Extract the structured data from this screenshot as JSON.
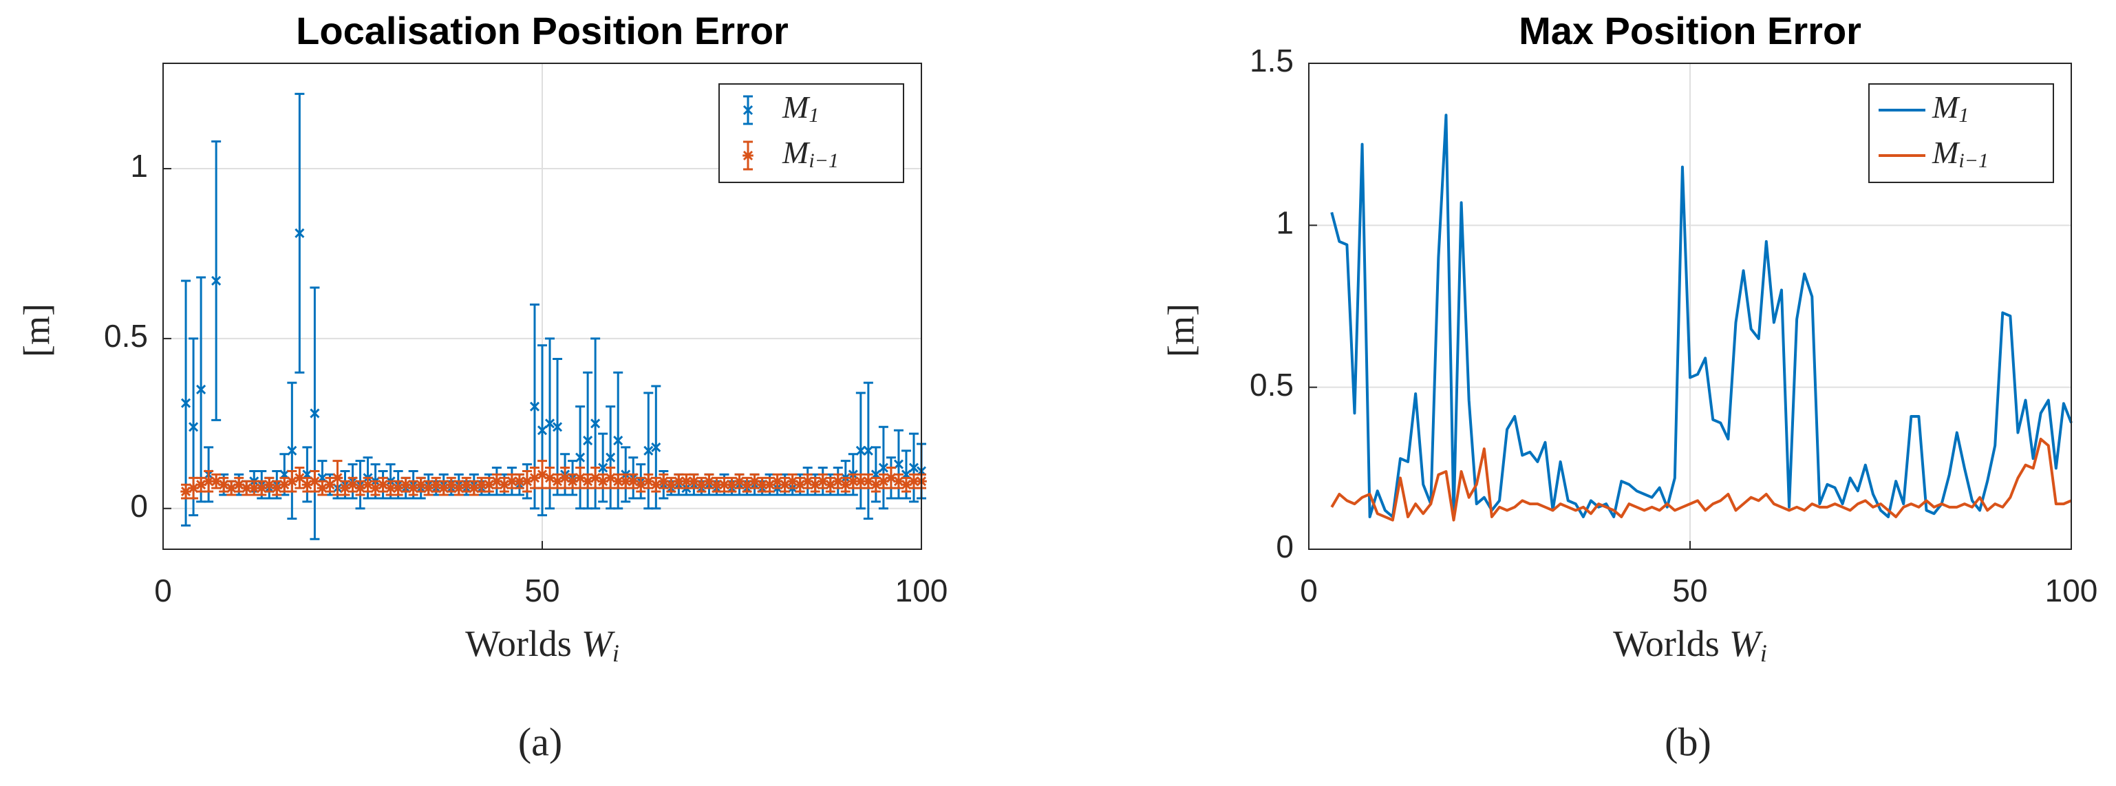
{
  "chart_data": [
    {
      "type": "errorbar",
      "title": "Localisation Position Error",
      "caption": "(a)",
      "xlabel": {
        "text": "Worlds",
        "var": "W",
        "sub": "i"
      },
      "ylabel": "[m]",
      "xlim": [
        0,
        100
      ],
      "xticks": [
        0,
        50,
        100
      ],
      "ylim": [
        -0.12,
        1.31
      ],
      "yticks": [
        0,
        0.5,
        1
      ],
      "grid": true,
      "legend": "northeast",
      "x": [
        3,
        4,
        5,
        6,
        7,
        8,
        9,
        10,
        11,
        12,
        13,
        14,
        15,
        16,
        17,
        18,
        19,
        20,
        21,
        22,
        23,
        24,
        25,
        26,
        27,
        28,
        29,
        30,
        31,
        32,
        33,
        34,
        35,
        36,
        37,
        38,
        39,
        40,
        41,
        42,
        43,
        44,
        45,
        46,
        47,
        48,
        49,
        50,
        51,
        52,
        53,
        54,
        55,
        56,
        57,
        58,
        59,
        60,
        61,
        62,
        63,
        64,
        65,
        66,
        67,
        68,
        69,
        70,
        71,
        72,
        73,
        74,
        75,
        76,
        77,
        78,
        79,
        80,
        81,
        82,
        83,
        84,
        85,
        86,
        87,
        88,
        89,
        90,
        91,
        92,
        93,
        94,
        95,
        96,
        97,
        98,
        99,
        100
      ],
      "series": [
        {
          "name": "M",
          "name_sub": "1",
          "color": "#0072bd",
          "marker": "x",
          "values": [
            0.31,
            0.24,
            0.35,
            0.1,
            0.67,
            0.07,
            0.06,
            0.07,
            0.06,
            0.08,
            0.07,
            0.06,
            0.07,
            0.1,
            0.17,
            0.81,
            0.1,
            0.28,
            0.09,
            0.07,
            0.06,
            0.07,
            0.08,
            0.07,
            0.09,
            0.08,
            0.07,
            0.08,
            0.07,
            0.06,
            0.07,
            0.06,
            0.07,
            0.06,
            0.07,
            0.06,
            0.07,
            0.06,
            0.07,
            0.06,
            0.07,
            0.08,
            0.07,
            0.08,
            0.07,
            0.08,
            0.3,
            0.23,
            0.25,
            0.24,
            0.1,
            0.09,
            0.15,
            0.2,
            0.25,
            0.12,
            0.15,
            0.2,
            0.1,
            0.09,
            0.08,
            0.17,
            0.18,
            0.07,
            0.06,
            0.07,
            0.06,
            0.07,
            0.06,
            0.07,
            0.06,
            0.07,
            0.06,
            0.07,
            0.06,
            0.07,
            0.06,
            0.07,
            0.06,
            0.07,
            0.06,
            0.07,
            0.08,
            0.07,
            0.08,
            0.07,
            0.08,
            0.09,
            0.1,
            0.17,
            0.17,
            0.1,
            0.12,
            0.09,
            0.13,
            0.1,
            0.12,
            0.11
          ],
          "errors": [
            0.36,
            0.26,
            0.33,
            0.08,
            0.41,
            0.03,
            0.02,
            0.03,
            0.02,
            0.03,
            0.04,
            0.03,
            0.04,
            0.06,
            0.2,
            0.41,
            0.08,
            0.37,
            0.05,
            0.03,
            0.03,
            0.04,
            0.05,
            0.07,
            0.06,
            0.05,
            0.04,
            0.05,
            0.04,
            0.03,
            0.04,
            0.03,
            0.03,
            0.02,
            0.03,
            0.02,
            0.03,
            0.02,
            0.03,
            0.02,
            0.03,
            0.04,
            0.03,
            0.04,
            0.03,
            0.05,
            0.3,
            0.25,
            0.25,
            0.2,
            0.06,
            0.05,
            0.15,
            0.2,
            0.25,
            0.1,
            0.15,
            0.2,
            0.08,
            0.06,
            0.05,
            0.17,
            0.18,
            0.04,
            0.02,
            0.03,
            0.02,
            0.03,
            0.02,
            0.03,
            0.02,
            0.03,
            0.02,
            0.03,
            0.02,
            0.03,
            0.02,
            0.03,
            0.02,
            0.03,
            0.02,
            0.03,
            0.04,
            0.03,
            0.04,
            0.03,
            0.04,
            0.05,
            0.06,
            0.17,
            0.2,
            0.08,
            0.12,
            0.06,
            0.1,
            0.07,
            0.1,
            0.08
          ]
        },
        {
          "name": "M",
          "name_sub": "i−1",
          "color": "#d95319",
          "marker": "*",
          "values": [
            0.05,
            0.06,
            0.07,
            0.08,
            0.08,
            0.07,
            0.06,
            0.07,
            0.06,
            0.06,
            0.06,
            0.07,
            0.06,
            0.07,
            0.08,
            0.09,
            0.07,
            0.08,
            0.06,
            0.07,
            0.09,
            0.06,
            0.07,
            0.06,
            0.07,
            0.06,
            0.07,
            0.06,
            0.06,
            0.07,
            0.06,
            0.07,
            0.06,
            0.07,
            0.06,
            0.07,
            0.06,
            0.07,
            0.06,
            0.07,
            0.07,
            0.08,
            0.07,
            0.08,
            0.08,
            0.08,
            0.09,
            0.1,
            0.09,
            0.08,
            0.09,
            0.08,
            0.09,
            0.08,
            0.09,
            0.08,
            0.09,
            0.08,
            0.08,
            0.08,
            0.07,
            0.08,
            0.07,
            0.08,
            0.07,
            0.08,
            0.08,
            0.08,
            0.07,
            0.08,
            0.07,
            0.07,
            0.07,
            0.08,
            0.07,
            0.08,
            0.07,
            0.07,
            0.08,
            0.07,
            0.08,
            0.07,
            0.08,
            0.07,
            0.08,
            0.07,
            0.08,
            0.07,
            0.08,
            0.08,
            0.08,
            0.07,
            0.08,
            0.09,
            0.08,
            0.07,
            0.08,
            0.08
          ],
          "errors": [
            0.02,
            0.03,
            0.02,
            0.03,
            0.02,
            0.02,
            0.02,
            0.02,
            0.02,
            0.02,
            0.02,
            0.02,
            0.02,
            0.02,
            0.03,
            0.03,
            0.02,
            0.03,
            0.02,
            0.02,
            0.05,
            0.02,
            0.02,
            0.02,
            0.02,
            0.02,
            0.02,
            0.02,
            0.02,
            0.02,
            0.02,
            0.02,
            0.02,
            0.02,
            0.02,
            0.02,
            0.02,
            0.02,
            0.02,
            0.02,
            0.02,
            0.02,
            0.02,
            0.02,
            0.02,
            0.03,
            0.03,
            0.04,
            0.03,
            0.02,
            0.03,
            0.02,
            0.03,
            0.02,
            0.03,
            0.02,
            0.03,
            0.02,
            0.02,
            0.02,
            0.02,
            0.02,
            0.02,
            0.02,
            0.02,
            0.02,
            0.02,
            0.02,
            0.02,
            0.02,
            0.02,
            0.02,
            0.02,
            0.02,
            0.02,
            0.02,
            0.02,
            0.02,
            0.02,
            0.02,
            0.02,
            0.02,
            0.02,
            0.02,
            0.02,
            0.02,
            0.02,
            0.02,
            0.02,
            0.02,
            0.02,
            0.02,
            0.02,
            0.03,
            0.02,
            0.02,
            0.02,
            0.02
          ]
        }
      ]
    },
    {
      "type": "line",
      "title": "Max Position Error",
      "caption": "(b)",
      "xlabel": {
        "text": "Worlds",
        "var": "W",
        "sub": "i"
      },
      "ylabel": "[m]",
      "xlim": [
        0,
        100
      ],
      "xticks": [
        0,
        50,
        100
      ],
      "ylim": [
        0,
        1.5
      ],
      "yticks": [
        0,
        0.5,
        1,
        1.5
      ],
      "grid": true,
      "legend": "northeast",
      "x": [
        3,
        4,
        5,
        6,
        7,
        8,
        9,
        10,
        11,
        12,
        13,
        14,
        15,
        16,
        17,
        18,
        19,
        20,
        21,
        22,
        23,
        24,
        25,
        26,
        27,
        28,
        29,
        30,
        31,
        32,
        33,
        34,
        35,
        36,
        37,
        38,
        39,
        40,
        41,
        42,
        43,
        44,
        45,
        46,
        47,
        48,
        49,
        50,
        51,
        52,
        53,
        54,
        55,
        56,
        57,
        58,
        59,
        60,
        61,
        62,
        63,
        64,
        65,
        66,
        67,
        68,
        69,
        70,
        71,
        72,
        73,
        74,
        75,
        76,
        77,
        78,
        79,
        80,
        81,
        82,
        83,
        84,
        85,
        86,
        87,
        88,
        89,
        90,
        91,
        92,
        93,
        94,
        95,
        96,
        97,
        98,
        99,
        100
      ],
      "series": [
        {
          "name": "M",
          "name_sub": "1",
          "color": "#0072bd",
          "values": [
            1.04,
            0.95,
            0.94,
            0.42,
            1.25,
            0.1,
            0.18,
            0.12,
            0.1,
            0.28,
            0.27,
            0.48,
            0.2,
            0.14,
            0.9,
            1.34,
            0.1,
            1.07,
            0.46,
            0.14,
            0.16,
            0.12,
            0.15,
            0.37,
            0.41,
            0.29,
            0.3,
            0.27,
            0.33,
            0.12,
            0.27,
            0.15,
            0.14,
            0.1,
            0.15,
            0.13,
            0.14,
            0.1,
            0.21,
            0.2,
            0.18,
            0.17,
            0.16,
            0.19,
            0.13,
            0.22,
            1.18,
            0.53,
            0.54,
            0.59,
            0.4,
            0.39,
            0.34,
            0.7,
            0.86,
            0.68,
            0.65,
            0.95,
            0.7,
            0.8,
            0.13,
            0.71,
            0.85,
            0.78,
            0.14,
            0.2,
            0.19,
            0.14,
            0.22,
            0.18,
            0.26,
            0.17,
            0.12,
            0.1,
            0.21,
            0.14,
            0.41,
            0.41,
            0.12,
            0.11,
            0.14,
            0.23,
            0.36,
            0.25,
            0.15,
            0.12,
            0.21,
            0.32,
            0.73,
            0.72,
            0.36,
            0.46,
            0.28,
            0.42,
            0.46,
            0.25,
            0.45,
            0.39
          ]
        },
        {
          "name": "M",
          "name_sub": "i−1",
          "color": "#d95319",
          "values": [
            0.13,
            0.17,
            0.15,
            0.14,
            0.16,
            0.17,
            0.11,
            0.1,
            0.09,
            0.22,
            0.1,
            0.14,
            0.11,
            0.14,
            0.23,
            0.24,
            0.09,
            0.24,
            0.16,
            0.2,
            0.31,
            0.1,
            0.13,
            0.12,
            0.13,
            0.15,
            0.14,
            0.14,
            0.13,
            0.12,
            0.14,
            0.13,
            0.12,
            0.13,
            0.11,
            0.14,
            0.13,
            0.12,
            0.1,
            0.14,
            0.13,
            0.12,
            0.13,
            0.12,
            0.14,
            0.12,
            0.13,
            0.14,
            0.15,
            0.12,
            0.14,
            0.15,
            0.17,
            0.12,
            0.14,
            0.16,
            0.15,
            0.17,
            0.14,
            0.13,
            0.12,
            0.13,
            0.12,
            0.14,
            0.13,
            0.13,
            0.14,
            0.13,
            0.12,
            0.14,
            0.15,
            0.13,
            0.14,
            0.12,
            0.1,
            0.13,
            0.14,
            0.13,
            0.15,
            0.13,
            0.14,
            0.13,
            0.13,
            0.14,
            0.13,
            0.16,
            0.12,
            0.14,
            0.13,
            0.16,
            0.22,
            0.26,
            0.25,
            0.34,
            0.32,
            0.14,
            0.14,
            0.15
          ]
        }
      ]
    }
  ]
}
